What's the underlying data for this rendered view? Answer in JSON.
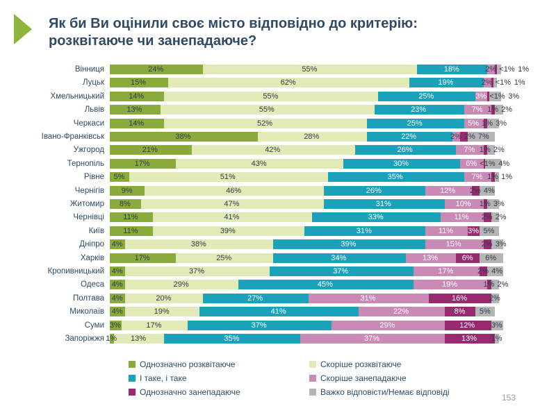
{
  "title_line1": "Як би Ви оцінили своє місто відповідно до критерію:",
  "title_line2": "розквітаюче чи занепадаюче?",
  "page_number": "153",
  "chart_data": {
    "type": "bar",
    "orientation": "horizontal-stacked-percent",
    "title": "Як би Ви оцінили своє місто відповідно до критерію: розквітаюче чи занепадаюче?",
    "xlim": [
      0,
      100
    ],
    "legend_position": "bottom",
    "series": [
      {
        "name": "Однозначно розквітаюче",
        "color": "#8aaa3c",
        "text": "#2e3a4a"
      },
      {
        "name": "Скоріше розквітаюче",
        "color": "#e2ebb8",
        "text": "#2e3a4a"
      },
      {
        "name": "І таке, і таке",
        "color": "#1ba2ba",
        "text": "#ffffff"
      },
      {
        "name": "Скоріше занепадаюче",
        "color": "#c98bb6",
        "text": "#ffffff"
      },
      {
        "name": "Однозначно занепадаюче",
        "color": "#9a2a70",
        "text": "#ffffff"
      },
      {
        "name": "Важко відповісти/Немає відповіді",
        "color": "#b5b5b5",
        "text": "#2e3a4a"
      }
    ],
    "categories": [
      "Вінниця",
      "Луцьк",
      "Хмельницький",
      "Львів",
      "Черкаси",
      "Івано-Франківськ",
      "Ужгород",
      "Тернопіль",
      "Рівне",
      "Чернігів",
      "Житомир",
      "Чернівці",
      "Київ",
      "Дніпро",
      "Харків",
      "Кропивницький",
      "Одеса",
      "Полтава",
      "Миколаїв",
      "Суми",
      "Запоріжжя"
    ],
    "values": [
      [
        24,
        55,
        18,
        2,
        0.5,
        1
      ],
      [
        15,
        62,
        19,
        2,
        0.5,
        1
      ],
      [
        14,
        55,
        25,
        3,
        0.5,
        3
      ],
      [
        13,
        55,
        23,
        7,
        1,
        2
      ],
      [
        14,
        52,
        25,
        5,
        1,
        3
      ],
      [
        38,
        28,
        22,
        2,
        2,
        7
      ],
      [
        21,
        42,
        26,
        7,
        1,
        2
      ],
      [
        17,
        43,
        30,
        6,
        0.5,
        4
      ],
      [
        5,
        51,
        35,
        7,
        1,
        1
      ],
      [
        9,
        46,
        26,
        12,
        2,
        4
      ],
      [
        8,
        47,
        31,
        10,
        1,
        3
      ],
      [
        11,
        41,
        33,
        11,
        2,
        2
      ],
      [
        11,
        39,
        31,
        11,
        3,
        5
      ],
      [
        4,
        38,
        39,
        15,
        2,
        3
      ],
      [
        17,
        25,
        34,
        13,
        6,
        6
      ],
      [
        4,
        37,
        37,
        17,
        2,
        4
      ],
      [
        4,
        29,
        45,
        19,
        1,
        2
      ],
      [
        4,
        20,
        27,
        31,
        16,
        2
      ],
      [
        4,
        19,
        41,
        22,
        8,
        5
      ],
      [
        3,
        17,
        37,
        29,
        12,
        3
      ],
      [
        1,
        13,
        35,
        37,
        13,
        1
      ]
    ],
    "labels": [
      [
        "24%",
        "55%",
        "18%",
        "2%",
        "<1%",
        "1%"
      ],
      [
        "15%",
        "62%",
        "19%",
        "2%",
        "<1%",
        "1%"
      ],
      [
        "14%",
        "55%",
        "25%",
        "3%",
        "<1%",
        "3%"
      ],
      [
        "13%",
        "55%",
        "23%",
        "7%",
        "1%",
        "2%"
      ],
      [
        "14%",
        "52%",
        "25%",
        "5%",
        "1%",
        "3%"
      ],
      [
        "38%",
        "28%",
        "22%",
        "2%",
        "2%",
        "7%"
      ],
      [
        "21%",
        "42%",
        "26%",
        "7%",
        "1%",
        "2%"
      ],
      [
        "17%",
        "43%",
        "30%",
        "6%",
        "<1%",
        "4%"
      ],
      [
        "5%",
        "51%",
        "35%",
        "7%",
        "1%",
        "1%"
      ],
      [
        "9%",
        "46%",
        "26%",
        "12%",
        "2%",
        "4%"
      ],
      [
        "8%",
        "47%",
        "31%",
        "10%",
        "1%",
        "3%"
      ],
      [
        "11%",
        "41%",
        "33%",
        "11%",
        "2%",
        "2%"
      ],
      [
        "11%",
        "39%",
        "31%",
        "11%",
        "3%",
        "5%"
      ],
      [
        "4%",
        "38%",
        "39%",
        "15%",
        "2%",
        "3%"
      ],
      [
        "17%",
        "25%",
        "34%",
        "13%",
        "6%",
        "6%"
      ],
      [
        "4%",
        "37%",
        "37%",
        "17%",
        "2%",
        "4%"
      ],
      [
        "4%",
        "29%",
        "45%",
        "19%",
        "1%",
        "2%"
      ],
      [
        "4%",
        "20%",
        "27%",
        "31%",
        "16%",
        "2%"
      ],
      [
        "4%",
        "19%",
        "41%",
        "22%",
        "8%",
        "5%"
      ],
      [
        "3%",
        "17%",
        "37%",
        "29%",
        "12%",
        "3%"
      ],
      [
        "1%",
        "13%",
        "35%",
        "37%",
        "13%",
        "1%"
      ]
    ]
  }
}
